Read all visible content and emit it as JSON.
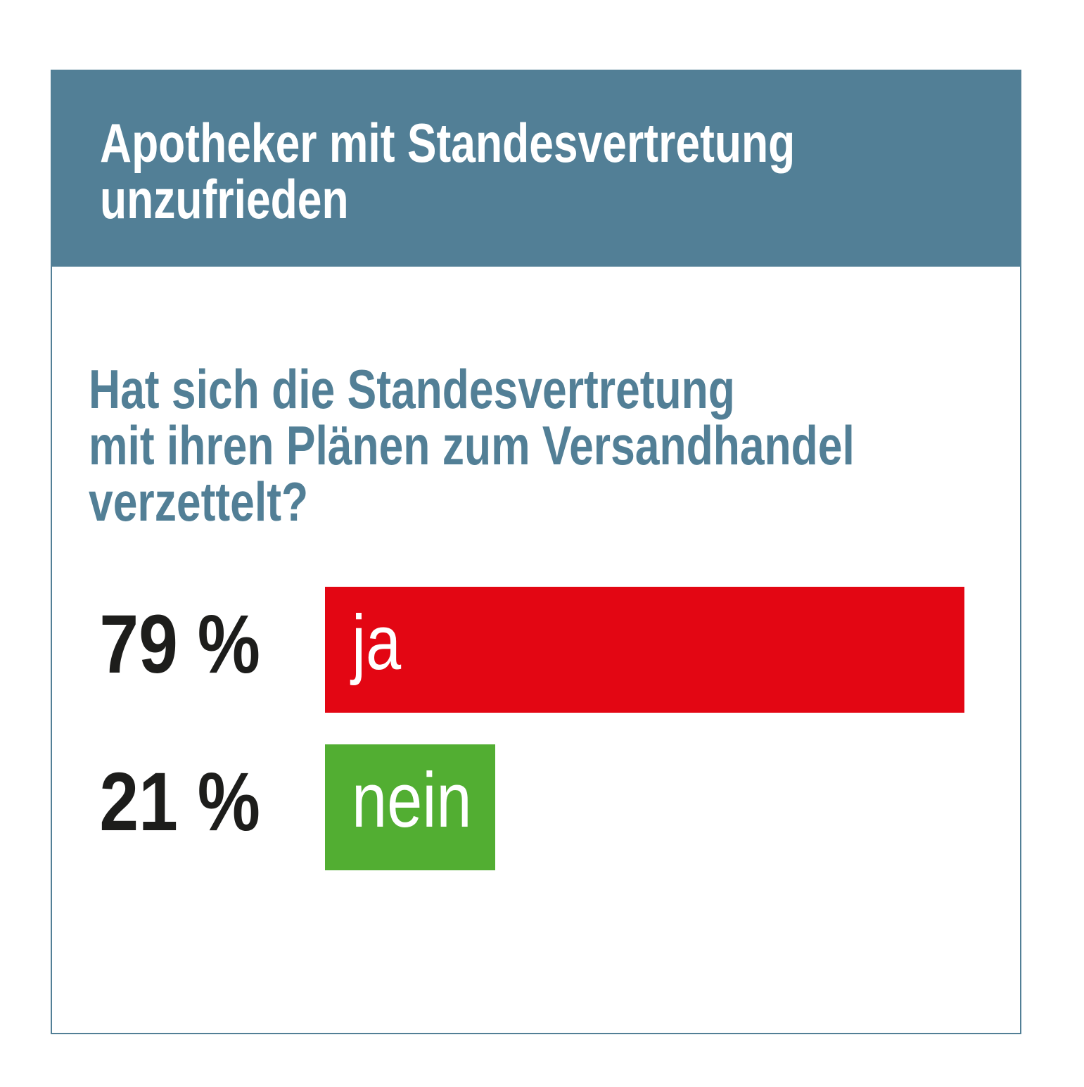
{
  "header": {
    "title_line1": "Apotheker mit Standesvertretung",
    "title_line2": "unzufrieden"
  },
  "chart_data": {
    "type": "bar",
    "orientation": "horizontal",
    "title": "Apotheker mit Standesvertretung unzufrieden",
    "question": [
      "Hat sich die Standesvertretung",
      "mit ihren Plänen zum Versandhandel",
      "verzettelt?"
    ],
    "categories": [
      "ja",
      "nein"
    ],
    "values": [
      79,
      21
    ],
    "value_labels": [
      "79 %",
      "21 %"
    ],
    "colors": [
      "#e30613",
      "#52ae32"
    ],
    "xlim": [
      0,
      100
    ]
  }
}
